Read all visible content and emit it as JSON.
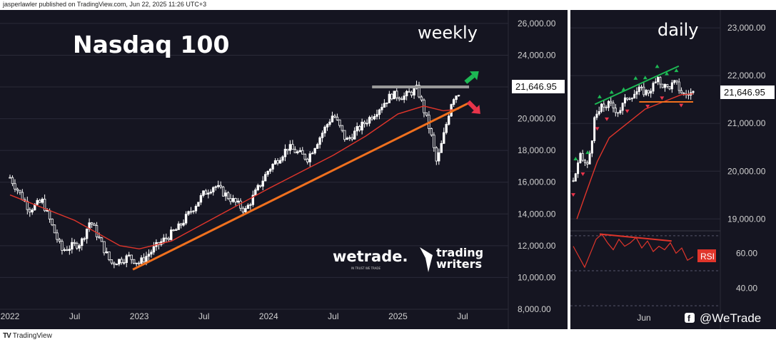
{
  "header": {
    "publisher": "jasperlawler published on TradingView.com, Jun 22, 2025 11:26 UTC+3"
  },
  "footer": {
    "brand": "TradingView",
    "logo_mark": "TV"
  },
  "social": {
    "handle": "@WeTrade",
    "icon": "facebook-icon"
  },
  "logos": {
    "wetrade": "wetrade.",
    "wetrade_tagline": "IN TRUST WE TRADE",
    "trading_writers_1": "trading",
    "trading_writers_2": "writers"
  },
  "colors": {
    "background": "#151521",
    "up": "#ffffff",
    "ma": "#e0352b",
    "trendline": "#f0701e",
    "resistance": "#9a9a9a",
    "green": "#1db954",
    "red": "#e8344a"
  },
  "chart_data": [
    {
      "type": "candlestick",
      "title": "Nasdaq 100",
      "subtitle": "weekly",
      "x_ticks": [
        "2022",
        "Jul",
        "2023",
        "Jul",
        "2024",
        "Jul",
        "2025",
        "Jul"
      ],
      "y_ticks": [
        "26,000.00",
        "24,000.00",
        "22,000.00",
        "20,000.00",
        "18,000.00",
        "16,000.00",
        "14,000.00",
        "12,000.00",
        "10,000.00",
        "8,000.00"
      ],
      "ylim": [
        8000,
        26400
      ],
      "last_price": "21,646.95",
      "close_path": [
        {
          "t": 2022.0,
          "v": 16300
        },
        {
          "t": 2022.15,
          "v": 14300
        },
        {
          "t": 2022.25,
          "v": 14800
        },
        {
          "t": 2022.4,
          "v": 11700
        },
        {
          "t": 2022.55,
          "v": 12200
        },
        {
          "t": 2022.62,
          "v": 13600
        },
        {
          "t": 2022.78,
          "v": 10900
        },
        {
          "t": 2022.92,
          "v": 11300
        },
        {
          "t": 2023.0,
          "v": 10900
        },
        {
          "t": 2023.15,
          "v": 12100
        },
        {
          "t": 2023.3,
          "v": 13100
        },
        {
          "t": 2023.5,
          "v": 15300
        },
        {
          "t": 2023.58,
          "v": 15800
        },
        {
          "t": 2023.82,
          "v": 14200
        },
        {
          "t": 2024.0,
          "v": 16800
        },
        {
          "t": 2024.15,
          "v": 18200
        },
        {
          "t": 2024.3,
          "v": 17500
        },
        {
          "t": 2024.5,
          "v": 20300
        },
        {
          "t": 2024.6,
          "v": 18600
        },
        {
          "t": 2024.8,
          "v": 20200
        },
        {
          "t": 2024.95,
          "v": 21500
        },
        {
          "t": 2025.05,
          "v": 21400
        },
        {
          "t": 2025.15,
          "v": 21900
        },
        {
          "t": 2025.25,
          "v": 19200
        },
        {
          "t": 2025.3,
          "v": 17200
        },
        {
          "t": 2025.35,
          "v": 18800
        },
        {
          "t": 2025.42,
          "v": 21300
        },
        {
          "t": 2025.47,
          "v": 21646.95
        }
      ],
      "moving_average": [
        {
          "t": 2022.0,
          "v": 15200
        },
        {
          "t": 2022.5,
          "v": 13600
        },
        {
          "t": 2022.85,
          "v": 12000
        },
        {
          "t": 2023.0,
          "v": 11800
        },
        {
          "t": 2023.25,
          "v": 12300
        },
        {
          "t": 2023.5,
          "v": 13400
        },
        {
          "t": 2023.75,
          "v": 14500
        },
        {
          "t": 2024.0,
          "v": 15600
        },
        {
          "t": 2024.5,
          "v": 17700
        },
        {
          "t": 2024.75,
          "v": 18900
        },
        {
          "t": 2025.0,
          "v": 20300
        },
        {
          "t": 2025.2,
          "v": 20800
        },
        {
          "t": 2025.35,
          "v": 20500
        },
        {
          "t": 2025.47,
          "v": 20600
        }
      ],
      "trendline": [
        {
          "t": 2022.95,
          "v": 10500
        },
        {
          "t": 2025.55,
          "v": 21000
        }
      ],
      "resistance": [
        {
          "t": 2024.8,
          "v": 22000
        },
        {
          "t": 2025.55,
          "v": 22000
        }
      ],
      "arrows": [
        {
          "direction": "up",
          "color": "green"
        },
        {
          "direction": "down",
          "color": "red"
        }
      ]
    },
    {
      "type": "candlestick",
      "subtitle": "daily",
      "x_ticks": [
        "Jun"
      ],
      "y_ticks": [
        "23,000.00",
        "22,000.00",
        "21,000.00",
        "20,000.00",
        "19,000.00"
      ],
      "ylim": [
        18900,
        23300
      ],
      "last_price": "21,646.95",
      "close_path": [
        {
          "t": 0.0,
          "v": 19800
        },
        {
          "t": 0.06,
          "v": 20300
        },
        {
          "t": 0.12,
          "v": 20100
        },
        {
          "t": 0.18,
          "v": 21100
        },
        {
          "t": 0.24,
          "v": 21350
        },
        {
          "t": 0.3,
          "v": 21400
        },
        {
          "t": 0.38,
          "v": 21250
        },
        {
          "t": 0.45,
          "v": 21550
        },
        {
          "t": 0.55,
          "v": 21700
        },
        {
          "t": 0.62,
          "v": 21650
        },
        {
          "t": 0.7,
          "v": 21900
        },
        {
          "t": 0.78,
          "v": 21750
        },
        {
          "t": 0.85,
          "v": 21850
        },
        {
          "t": 0.92,
          "v": 21600
        },
        {
          "t": 1.0,
          "v": 21646.95
        }
      ],
      "moving_average": [
        {
          "t": 0.03,
          "v": 19000
        },
        {
          "t": 0.1,
          "v": 19500
        },
        {
          "t": 0.2,
          "v": 20200
        },
        {
          "t": 0.3,
          "v": 20700
        },
        {
          "t": 0.45,
          "v": 21000
        },
        {
          "t": 0.6,
          "v": 21300
        },
        {
          "t": 0.75,
          "v": 21450
        },
        {
          "t": 0.9,
          "v": 21600
        },
        {
          "t": 1.0,
          "v": 21620
        }
      ],
      "support": [
        {
          "t": 0.55,
          "v": 21450
        },
        {
          "t": 1.0,
          "v": 21450
        }
      ],
      "rising_trendline": [
        {
          "t": 0.18,
          "v": 21400
        },
        {
          "t": 0.88,
          "v": 22200
        }
      ],
      "rsi": {
        "label": "RSI",
        "y_ticks": [
          "60.00",
          "40.00"
        ],
        "ylim": [
          28,
          72
        ],
        "levels": [
          70,
          50,
          30
        ],
        "values": [
          64,
          58,
          52,
          60,
          68,
          71,
          66,
          62,
          68,
          64,
          66,
          69,
          63,
          67,
          61,
          64,
          62,
          66,
          60,
          63,
          56,
          58
        ],
        "divergence_line": [
          {
            "t": 0.22,
            "v": 71
          },
          {
            "t": 0.82,
            "v": 67
          }
        ]
      }
    }
  ]
}
